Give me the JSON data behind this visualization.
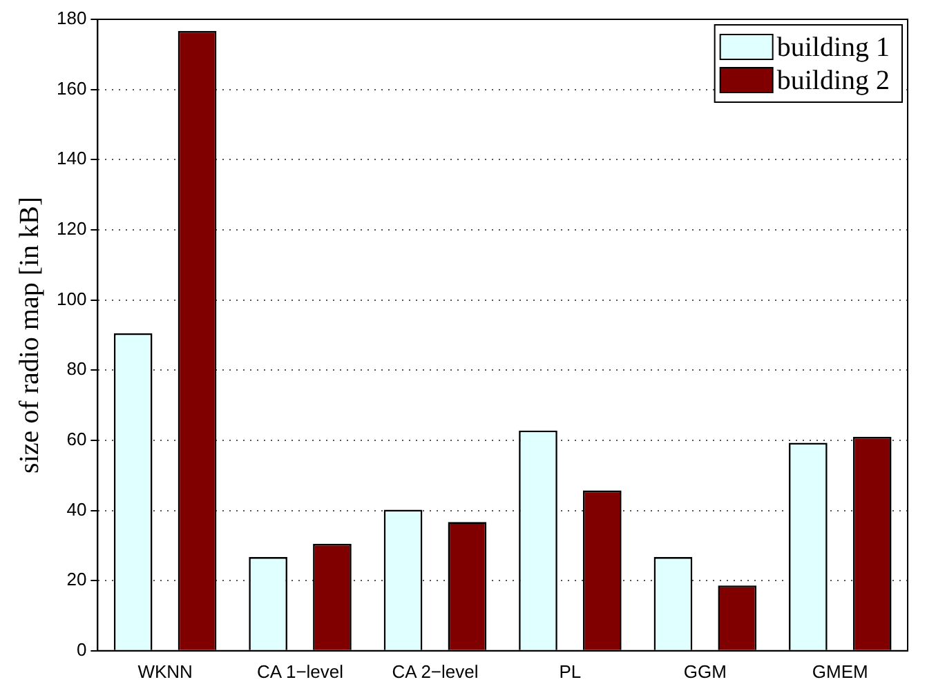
{
  "chart_data": {
    "type": "bar",
    "ylabel": "size of radio map [in kB]",
    "categories": [
      "WKNN",
      "CA 1−level",
      "CA 2−level",
      "PL",
      "GGM",
      "GMEM"
    ],
    "series": [
      {
        "name": "building 1",
        "color": "#e0ffff",
        "values": [
          90.5,
          26.7,
          40.2,
          62.8,
          26.7,
          59.3
        ]
      },
      {
        "name": "building 2",
        "color": "#800000",
        "values": [
          176.7,
          30.5,
          36.7,
          45.7,
          18.6,
          61.0
        ]
      }
    ],
    "ylim": [
      0,
      180
    ],
    "yticks": [
      0,
      20,
      40,
      60,
      80,
      100,
      120,
      140,
      160,
      180
    ],
    "grid": "y",
    "legend": "top right"
  }
}
